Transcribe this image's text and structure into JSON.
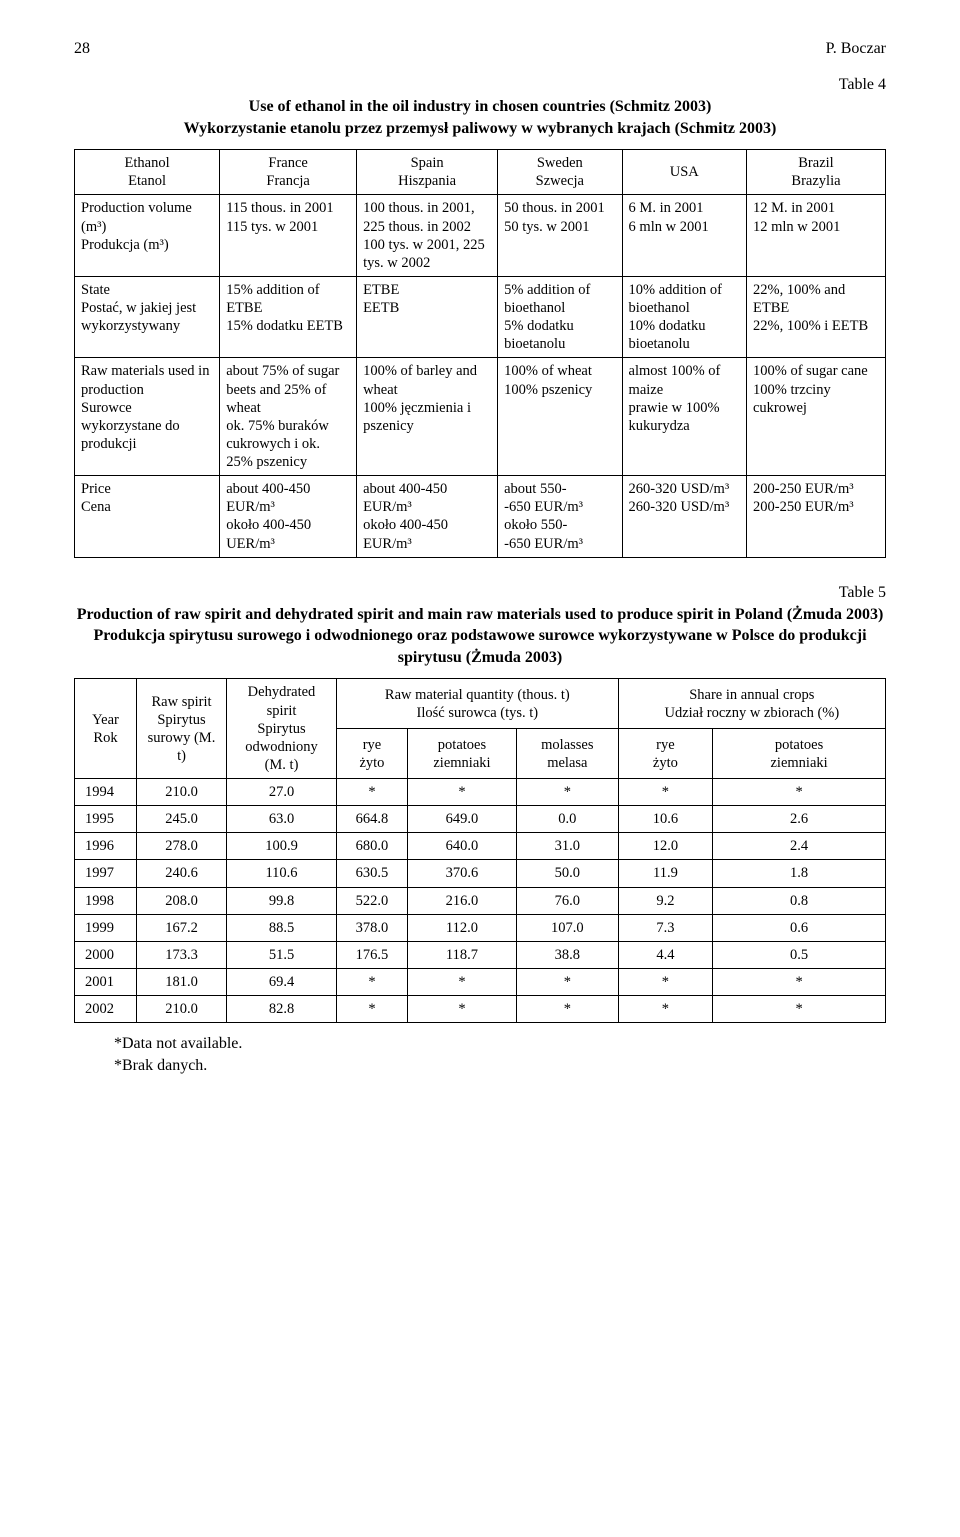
{
  "page": {
    "number": "28",
    "author": "P. Boczar"
  },
  "table4": {
    "label": "Table 4",
    "title_en": "Use of ethanol in the oil industry in chosen countries (Schmitz 2003)",
    "title_pl": "Wykorzystanie etanolu przez przemysł paliwowy w wybranych krajach (Schmitz 2003)",
    "head": {
      "col0_en": "Ethanol",
      "col0_pl": "Etanol",
      "cols": [
        {
          "en": "France",
          "pl": "Francja"
        },
        {
          "en": "Spain",
          "pl": "Hiszpania"
        },
        {
          "en": "Sweden",
          "pl": "Szwecja"
        },
        {
          "en": "USA",
          "pl": ""
        },
        {
          "en": "Brazil",
          "pl": "Brazylia"
        }
      ]
    },
    "rows": [
      {
        "label_en": "Production volume (m³)",
        "label_pl": "Produkcja (m³)",
        "cells": [
          "115 thous. in 2001\n115 tys. w 2001",
          "100 thous. in 2001, 225 thous. in 2002\n100 tys. w 2001, 225 tys. w 2002",
          "50 thous. in 2001\n50 tys. w 2001",
          "6 M. in 2001\n6 mln w 2001",
          "12 M. in 2001\n12 mln w 2001"
        ]
      },
      {
        "label_en": "State",
        "label_pl": "Postać, w jakiej jest wykorzystywany",
        "cells": [
          "15% addition of ETBE\n15% dodatku EETB",
          "ETBE\nEETB",
          "5% addition of bioethanol\n5% dodatku bioetanolu",
          "10% addition of bioethanol\n10% dodatku bioetanolu",
          "22%, 100% and ETBE\n22%, 100% i EETB"
        ]
      },
      {
        "label_en": "Raw materials used in production",
        "label_pl": "Surowce wykorzystane do produkcji",
        "cells": [
          "about 75% of sugar beets and 25% of wheat\nok. 75% buraków cukrowych i ok. 25% pszenicy",
          "100% of barley and wheat\n100% jęczmienia i pszenicy",
          "100% of wheat\n100% pszenicy",
          "almost 100% of maize\nprawie w 100% kukurydza",
          "100% of sugar cane\n100% trzciny cukrowej"
        ]
      },
      {
        "label_en": "Price",
        "label_pl": "Cena",
        "cells": [
          "about 400-450 EUR/m³\nokoło 400-450 UER/m³",
          "about 400-450 EUR/m³\nokoło 400-450 EUR/m³",
          "about 550-\n-650 EUR/m³\nokoło 550-\n-650 EUR/m³",
          "260-320 USD/m³\n260-320 USD/m³",
          "200-250 EUR/m³\n200-250 EUR/m³"
        ]
      }
    ]
  },
  "table5": {
    "label": "Table 5",
    "title1": "Production of raw spirit and dehydrated spirit and main raw materials used to produce spirit in Poland (Żmuda 2003)",
    "title2": "Produkcja spirytusu surowego i odwodnionego oraz podstawowe surowce wykorzystywane w Polsce do produkcji spirytusu (Żmuda 2003)",
    "head": {
      "year_en": "Year",
      "year_pl": "Rok",
      "raw_en": "Raw spirit",
      "raw_pl": "Spirytus surowy (M. t)",
      "deh_en": "Dehydrated spirit",
      "deh_pl": "Spirytus odwodniony (M. t)",
      "qty_en": "Raw material quantity (thous. t)",
      "qty_pl": "Ilość surowca (tys. t)",
      "share_en": "Share in annual crops",
      "share_pl": "Udział roczny w zbiorach (%)",
      "rye_en": "rye",
      "rye_pl": "żyto",
      "pot_en": "potatoes",
      "pot_pl": "ziemniaki",
      "mol_en": "molasses",
      "mol_pl": "melasa"
    },
    "rows": [
      [
        "1994",
        "210.0",
        "27.0",
        "*",
        "*",
        "*",
        "*",
        "*"
      ],
      [
        "1995",
        "245.0",
        "63.0",
        "664.8",
        "649.0",
        "0.0",
        "10.6",
        "2.6"
      ],
      [
        "1996",
        "278.0",
        "100.9",
        "680.0",
        "640.0",
        "31.0",
        "12.0",
        "2.4"
      ],
      [
        "1997",
        "240.6",
        "110.6",
        "630.5",
        "370.6",
        "50.0",
        "11.9",
        "1.8"
      ],
      [
        "1998",
        "208.0",
        "99.8",
        "522.0",
        "216.0",
        "76.0",
        "9.2",
        "0.8"
      ],
      [
        "1999",
        "167.2",
        "88.5",
        "378.0",
        "112.0",
        "107.0",
        "7.3",
        "0.6"
      ],
      [
        "2000",
        "173.3",
        "51.5",
        "176.5",
        "118.7",
        "38.8",
        "4.4",
        "0.5"
      ],
      [
        "2001",
        "181.0",
        "69.4",
        "*",
        "*",
        "*",
        "*",
        "*"
      ],
      [
        "2002",
        "210.0",
        "82.8",
        "*",
        "*",
        "*",
        "*",
        "*"
      ]
    ],
    "foot1": "*Data not available.",
    "foot2": "*Brak danych."
  }
}
